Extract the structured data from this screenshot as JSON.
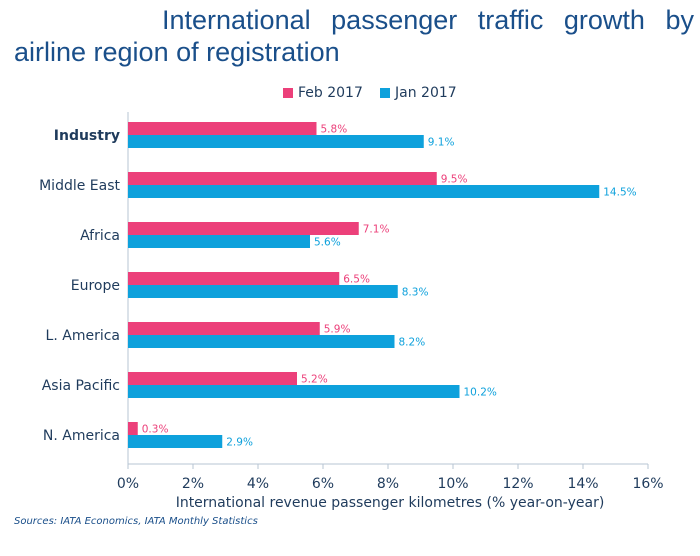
{
  "title": "International passenger traffic growth by airline region of registration",
  "source": "Sources: IATA Economics, IATA Monthly Statistics",
  "colors": {
    "feb": "#ec407a",
    "jan": "#0ea1dc",
    "axis": "#b7c4d3",
    "text": "#1f3b5c",
    "title": "#1a4f8a"
  },
  "chart_data": {
    "type": "bar",
    "orientation": "horizontal",
    "categories": [
      "Industry",
      "Middle East",
      "Africa",
      "Europe",
      "L. America",
      "Asia Pacific",
      "N. America"
    ],
    "series": [
      {
        "name": "Feb 2017",
        "values": [
          5.8,
          9.5,
          7.1,
          6.5,
          5.9,
          5.2,
          0.3
        ],
        "labels": [
          "5.8%",
          "9.5%",
          "7.1%",
          "6.5%",
          "5.9%",
          "5.2%",
          "0.3%"
        ]
      },
      {
        "name": "Jan 2017",
        "values": [
          9.1,
          14.5,
          5.6,
          8.3,
          8.2,
          10.2,
          2.9
        ],
        "labels": [
          "9.1%",
          "14.5%",
          "5.6%",
          "8.3%",
          "8.2%",
          "10.2%",
          "2.9%"
        ]
      }
    ],
    "xlim": [
      0,
      16
    ],
    "xticks": [
      0,
      2,
      4,
      6,
      8,
      10,
      12,
      14,
      16
    ],
    "xtick_labels": [
      "0%",
      "2%",
      "4%",
      "6%",
      "8%",
      "10%",
      "12%",
      "14%",
      "16%"
    ],
    "xlabel": "International revenue passenger kilometres (% year-on-year)",
    "legend_position": "top"
  }
}
